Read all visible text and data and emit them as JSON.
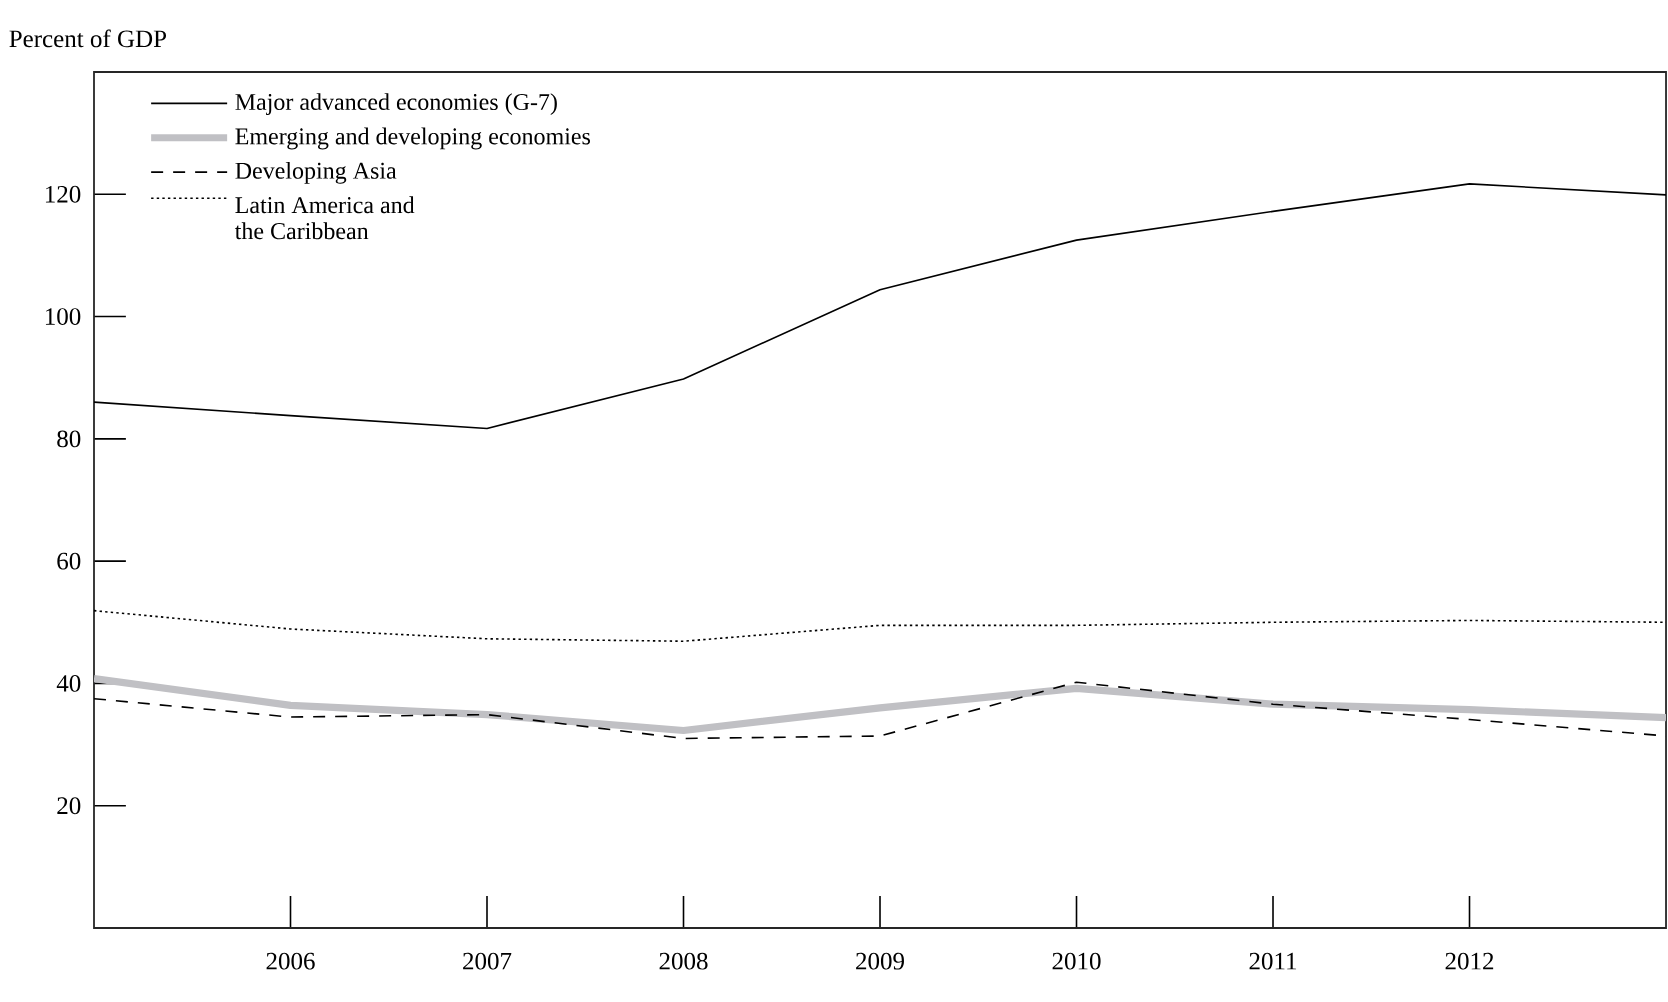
{
  "chart_data": {
    "type": "line",
    "ylabel": "Percent of GDP",
    "x": [
      2005,
      2006,
      2007,
      2008,
      2009,
      2010,
      2011,
      2012,
      2013
    ],
    "xlim": [
      2005,
      2013
    ],
    "xticks": [
      2006,
      2007,
      2008,
      2009,
      2010,
      2011,
      2012
    ],
    "ylim": [
      0,
      140
    ],
    "yticks": [
      20,
      40,
      60,
      80,
      100,
      120
    ],
    "legend": "top left",
    "series": [
      {
        "name": "Major advanced economies (G-7)",
        "color": "#000000",
        "line_style": "solid",
        "values": [
          86.0,
          83.8,
          81.7,
          89.8,
          104.4,
          112.5,
          117.2,
          121.7,
          119.9
        ]
      },
      {
        "name": "Emerging and developing economies",
        "color": "#c0c0c4",
        "line_style": "solid",
        "values": [
          40.8,
          36.4,
          34.9,
          32.3,
          36.0,
          39.2,
          36.6,
          35.7,
          34.4
        ]
      },
      {
        "name": "Developing Asia",
        "color": "#000000",
        "line_style": "dashed",
        "values": [
          37.5,
          34.5,
          34.9,
          31.0,
          31.4,
          40.2,
          36.6,
          34.1,
          31.4
        ]
      },
      {
        "name": "Latin America and the Caribbean",
        "color": "#000000",
        "line_style": "dotted",
        "values": [
          51.9,
          48.9,
          47.3,
          46.9,
          49.5,
          49.5,
          50.0,
          50.3,
          50.0
        ]
      }
    ]
  }
}
